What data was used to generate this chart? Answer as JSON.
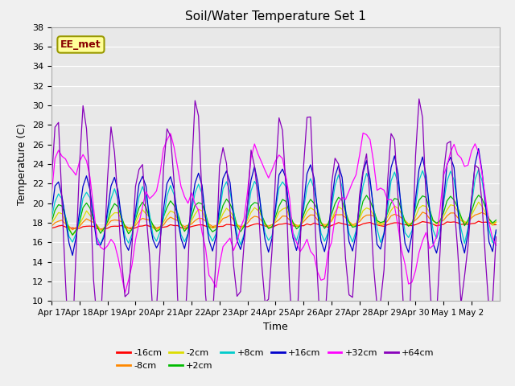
{
  "title": "Soil/Water Temperature Set 1",
  "xlabel": "Time",
  "ylabel": "Temperature (C)",
  "ylim": [
    10,
    38
  ],
  "xlim_days": 16,
  "xtick_labels": [
    "Apr 17",
    "Apr 18",
    "Apr 19",
    "Apr 20",
    "Apr 21",
    "Apr 22",
    "Apr 23",
    "Apr 24",
    "Apr 25",
    "Apr 26",
    "Apr 27",
    "Apr 28",
    "Apr 29",
    "Apr 30",
    "May 1",
    "May 2"
  ],
  "annotation": "EE_met",
  "bg_color": "#e8e8e8",
  "fig_color": "#f0f0f0",
  "series": [
    {
      "label": "-16cm",
      "color": "#ff0000"
    },
    {
      "label": "-8cm",
      "color": "#ff8800"
    },
    {
      "label": "-2cm",
      "color": "#dddd00"
    },
    {
      "label": "+2cm",
      "color": "#00bb00"
    },
    {
      "label": "+8cm",
      "color": "#00cccc"
    },
    {
      "label": "+16cm",
      "color": "#0000cc"
    },
    {
      "label": "+32cm",
      "color": "#ff00ff"
    },
    {
      "label": "+64cm",
      "color": "#8800bb"
    }
  ],
  "n_per_day": 8,
  "n_days": 16,
  "base_temp": 17.5,
  "trend": 0.06
}
